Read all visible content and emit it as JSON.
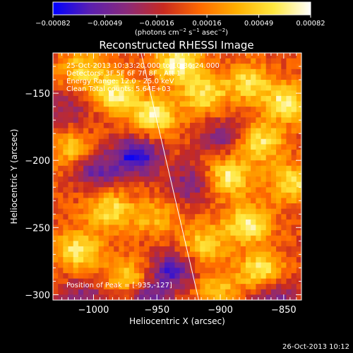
{
  "chart_data": {
    "type": "heatmap",
    "title": "Reconstructed RHESSI Image",
    "xlabel": "Heliocentric X (arcsec)",
    "ylabel": "Heliocentric Y (arcsec)",
    "xlim": [
      -1032,
      -836
    ],
    "ylim": [
      -304,
      -120
    ],
    "xticks": [
      -1000,
      -950,
      -900,
      -850
    ],
    "yticks": [
      -150,
      -200,
      -250,
      -300
    ],
    "xtick_labels": [
      "−1000",
      "−950",
      "−900",
      "−850"
    ],
    "ytick_labels": [
      "−150",
      "−200",
      "−250",
      "−300"
    ],
    "colorbar": {
      "min": -0.00082,
      "max": 0.00082,
      "tick_values": [
        -0.00082,
        -0.00049,
        -0.00016,
        0.00016,
        0.00049,
        0.00082
      ],
      "tick_labels": [
        "−0.00082",
        "−0.00049",
        "−0.00016",
        "0.00016",
        "0.00049",
        "0.00082"
      ],
      "units_text": "(photons cm",
      "units_exp1": "−2",
      "units_mid": " s",
      "units_exp2": "−1",
      "units_mid2": " asec",
      "units_exp3": "−2",
      "units_end": ")",
      "colormap": [
        "#0000ff",
        "#5a1fb0",
        "#8a2a7a",
        "#c82a20",
        "#ff6a00",
        "#ffb000",
        "#ffe840",
        "#ffffff"
      ]
    },
    "annotations": [
      "25-Oct-2013 10:33:20.000 to 10:36:24.000",
      "Detectors: 3F 5F 6F 7F 8F     , Att 1",
      "Energy Range: 12.0 - 25.0 keV",
      "Clean     Total counts: 5.64E+03"
    ],
    "peak_label": "Position of Peak = [-935,-127]",
    "limb_line": {
      "x1": -963,
      "y1": -118,
      "x2": -917,
      "y2": -304
    },
    "features": [
      {
        "x": -1010,
        "y": -130,
        "v": 0.7
      },
      {
        "x": -985,
        "y": -148,
        "v": 0.9
      },
      {
        "x": -955,
        "y": -165,
        "v": 0.95
      },
      {
        "x": -935,
        "y": -127,
        "v": 1.0
      },
      {
        "x": -915,
        "y": -150,
        "v": 0.8
      },
      {
        "x": -880,
        "y": -140,
        "v": 0.75
      },
      {
        "x": -850,
        "y": -155,
        "v": 0.9
      },
      {
        "x": -870,
        "y": -185,
        "v": 0.85
      },
      {
        "x": -895,
        "y": -210,
        "v": 0.9
      },
      {
        "x": -845,
        "y": -215,
        "v": 0.8
      },
      {
        "x": -880,
        "y": -245,
        "v": 0.95
      },
      {
        "x": -915,
        "y": -260,
        "v": 0.7
      },
      {
        "x": -870,
        "y": -280,
        "v": 0.85
      },
      {
        "x": -905,
        "y": -295,
        "v": 0.6
      },
      {
        "x": -990,
        "y": -235,
        "v": 0.8
      },
      {
        "x": -1015,
        "y": -265,
        "v": 0.85
      },
      {
        "x": -975,
        "y": -285,
        "v": 0.7
      },
      {
        "x": -1020,
        "y": -190,
        "v": 0.6
      },
      {
        "x": -955,
        "y": -240,
        "v": 0.5
      },
      {
        "x": -968,
        "y": -195,
        "v": -1.0
      },
      {
        "x": -1000,
        "y": -205,
        "v": -0.7
      },
      {
        "x": -925,
        "y": -215,
        "v": -0.6
      },
      {
        "x": -940,
        "y": -280,
        "v": -0.8
      },
      {
        "x": -960,
        "y": -300,
        "v": -0.7
      },
      {
        "x": -860,
        "y": -300,
        "v": -0.6
      },
      {
        "x": -1010,
        "y": -300,
        "v": -0.5
      },
      {
        "x": -1020,
        "y": -160,
        "v": -0.4
      },
      {
        "x": -900,
        "y": -180,
        "v": -0.5
      }
    ]
  },
  "footer": {
    "timestamp": "26-Oct-2013 10:12"
  }
}
